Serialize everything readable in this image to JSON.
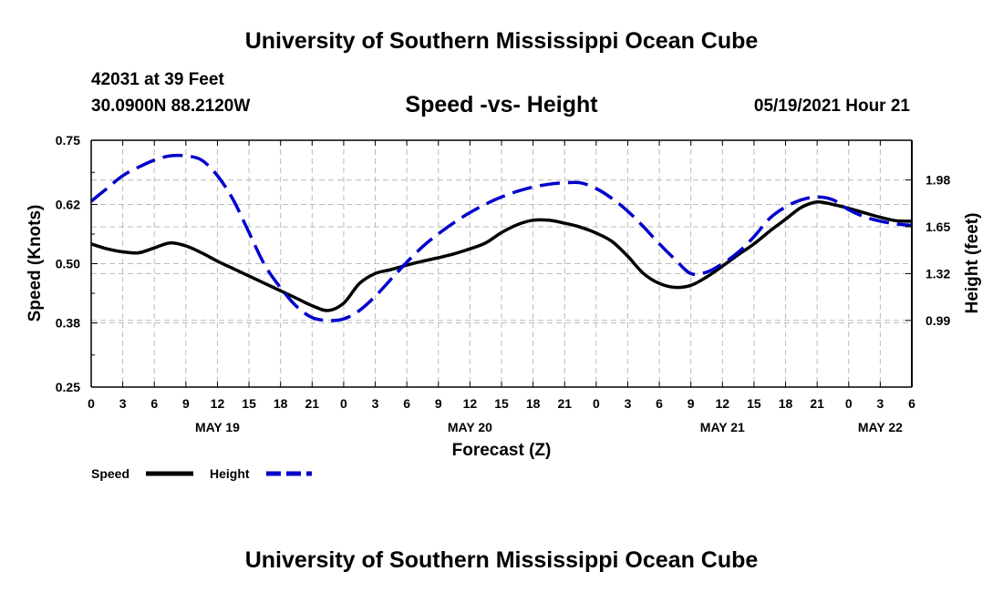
{
  "header_title": "University of Southern Mississippi Ocean Cube",
  "footer_title": "University of Southern Mississippi Ocean Cube",
  "station": "42031 at 39 Feet",
  "coordinates": "30.0900N  88.2120W",
  "datetime": "05/19/2021 Hour 21",
  "colors": {
    "speed": "#000000",
    "height": "#0000cc",
    "grid": "#bbbbbb"
  },
  "chart_data": {
    "type": "line",
    "title": "Speed -vs- Height",
    "xlabel": "Forecast (Z)",
    "ylabel_left": "Speed (Knots)",
    "ylabel_right": "Height (feet)",
    "x_range_hours": [
      0,
      78
    ],
    "x_ticks": [
      {
        "h": 0,
        "label": "0"
      },
      {
        "h": 3,
        "label": "3"
      },
      {
        "h": 6,
        "label": "6"
      },
      {
        "h": 9,
        "label": "9"
      },
      {
        "h": 12,
        "label": "12"
      },
      {
        "h": 15,
        "label": "15"
      },
      {
        "h": 18,
        "label": "18"
      },
      {
        "h": 21,
        "label": "21"
      },
      {
        "h": 24,
        "label": "0"
      },
      {
        "h": 27,
        "label": "3"
      },
      {
        "h": 30,
        "label": "6"
      },
      {
        "h": 33,
        "label": "9"
      },
      {
        "h": 36,
        "label": "12"
      },
      {
        "h": 39,
        "label": "15"
      },
      {
        "h": 42,
        "label": "18"
      },
      {
        "h": 45,
        "label": "21"
      },
      {
        "h": 48,
        "label": "0"
      },
      {
        "h": 51,
        "label": "3"
      },
      {
        "h": 54,
        "label": "6"
      },
      {
        "h": 57,
        "label": "9"
      },
      {
        "h": 60,
        "label": "12"
      },
      {
        "h": 63,
        "label": "15"
      },
      {
        "h": 66,
        "label": "18"
      },
      {
        "h": 69,
        "label": "21"
      },
      {
        "h": 72,
        "label": "0"
      },
      {
        "h": 75,
        "label": "3"
      },
      {
        "h": 78,
        "label": "6"
      }
    ],
    "date_labels": [
      {
        "h": 12,
        "label": "MAY 19"
      },
      {
        "h": 36,
        "label": "MAY 20"
      },
      {
        "h": 60,
        "label": "MAY 21"
      },
      {
        "h": 75,
        "label": "MAY 22"
      }
    ],
    "y_left": {
      "range": [
        0.25,
        0.75
      ],
      "ticks": [
        0.25,
        0.38,
        0.5,
        0.62,
        0.75
      ],
      "labels": [
        "0.25",
        "0.38",
        "0.50",
        "0.62",
        "0.75"
      ]
    },
    "y_right": {
      "range": [
        0.52,
        2.26
      ],
      "ticks": [
        0.99,
        1.32,
        1.65,
        1.98
      ],
      "labels": [
        "0.99",
        "1.32",
        "1.65",
        "1.98"
      ]
    },
    "series": [
      {
        "name": "Speed",
        "axis": "left",
        "style": "solid",
        "x": [
          0,
          1.5,
          3,
          4.5,
          6,
          7.5,
          9,
          10.5,
          12,
          13.5,
          15,
          16.5,
          18,
          19.5,
          21,
          22.5,
          24,
          25.5,
          27,
          28.5,
          30,
          31.5,
          33,
          34.5,
          36,
          37.5,
          39,
          40.5,
          42,
          43.5,
          45,
          46.5,
          48,
          49.5,
          51,
          52.5,
          54,
          55.5,
          57,
          58.5,
          60,
          61.5,
          63,
          64.5,
          66,
          67.5,
          69,
          70.5,
          72,
          73.5,
          75,
          76.5,
          78
        ],
        "values": [
          0.54,
          0.53,
          0.524,
          0.522,
          0.532,
          0.542,
          0.536,
          0.522,
          0.505,
          0.49,
          0.475,
          0.46,
          0.445,
          0.43,
          0.415,
          0.405,
          0.42,
          0.46,
          0.48,
          0.488,
          0.497,
          0.505,
          0.512,
          0.52,
          0.53,
          0.542,
          0.563,
          0.579,
          0.588,
          0.588,
          0.582,
          0.574,
          0.562,
          0.545,
          0.515,
          0.48,
          0.46,
          0.452,
          0.456,
          0.473,
          0.495,
          0.518,
          0.54,
          0.566,
          0.59,
          0.614,
          0.625,
          0.62,
          0.612,
          0.603,
          0.594,
          0.587,
          0.586
        ]
      },
      {
        "name": "Height",
        "axis": "right",
        "style": "dashed",
        "x": [
          0,
          1.5,
          3,
          4.5,
          6,
          7.5,
          9,
          10.5,
          12,
          13.5,
          15,
          16.5,
          18,
          19.5,
          21,
          22.5,
          24,
          25.5,
          27,
          28.5,
          30,
          31.5,
          33,
          34.5,
          36,
          37.5,
          39,
          40.5,
          42,
          43.5,
          45,
          46.5,
          48,
          49.5,
          51,
          52.5,
          54,
          55.5,
          57,
          58.5,
          60,
          61.5,
          63,
          64.5,
          66,
          67.5,
          69,
          70.5,
          72,
          73.5,
          75,
          76.5,
          78
        ],
        "values": [
          1.83,
          1.92,
          2.01,
          2.07,
          2.12,
          2.15,
          2.15,
          2.12,
          2.01,
          1.84,
          1.61,
          1.38,
          1.22,
          1.09,
          1.01,
          0.99,
          1.0,
          1.06,
          1.16,
          1.28,
          1.4,
          1.51,
          1.6,
          1.68,
          1.75,
          1.81,
          1.86,
          1.9,
          1.93,
          1.95,
          1.96,
          1.96,
          1.92,
          1.85,
          1.76,
          1.65,
          1.53,
          1.42,
          1.32,
          1.33,
          1.39,
          1.47,
          1.58,
          1.71,
          1.79,
          1.84,
          1.86,
          1.84,
          1.77,
          1.72,
          1.69,
          1.67,
          1.66
        ]
      }
    ],
    "legend": [
      {
        "label": "Speed",
        "style": "solid"
      },
      {
        "label": "Height",
        "style": "dashed"
      }
    ]
  }
}
